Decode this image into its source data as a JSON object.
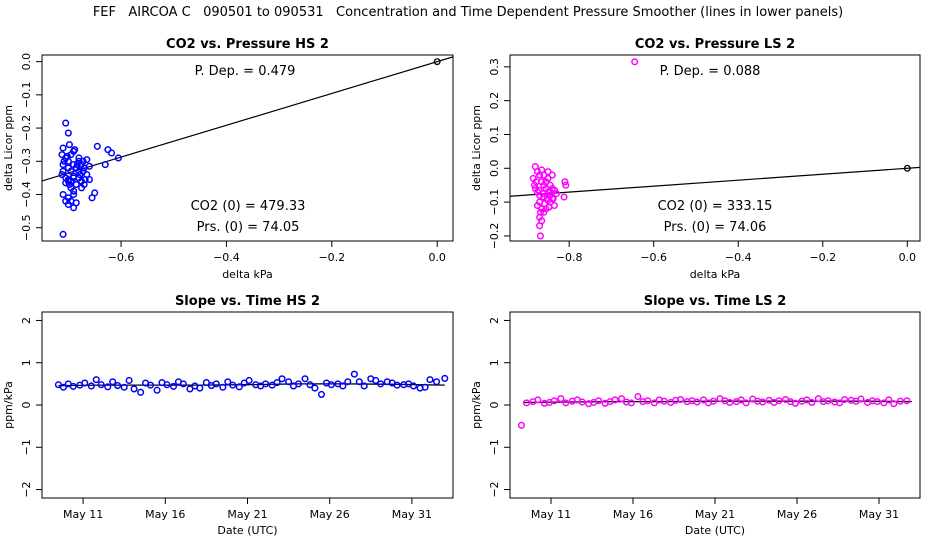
{
  "title": "FEF   AIRCOA C   090501 to 090531   Concentration and Time Dependent Pressure Smoother (lines in lower panels)",
  "colors": {
    "hs": "#0000ff",
    "ls": "#ff00ff",
    "line": "#000000",
    "axis": "#000000"
  },
  "chart_data": [
    {
      "id": "p1",
      "type": "scatter",
      "title": "CO2 vs. Pressure HS 2",
      "xlabel": "delta kPa",
      "ylabel": "delta Licor ppm",
      "xlim": [
        -0.75,
        0.03
      ],
      "ylim": [
        -0.54,
        0.02
      ],
      "xticks": [
        -0.6,
        -0.4,
        -0.2,
        0.0
      ],
      "xtick_labels": [
        "−0.6",
        "−0.4",
        "−0.2",
        "0.0"
      ],
      "yticks": [
        0.0,
        -0.1,
        -0.2,
        -0.3,
        -0.4,
        -0.5
      ],
      "ytick_labels": [
        "0.0",
        "−0.1",
        "−0.2",
        "−0.3",
        "−0.4",
        "−0.5"
      ],
      "annotations": {
        "pdep": "P. Dep. =  0.479",
        "co2_0": "CO2 (0) =  479.33",
        "prs_0": "Prs. (0) =  74.05"
      },
      "fit_line": {
        "slope": 0.479,
        "intercept": 0.0
      },
      "reference_point": [
        0.0,
        0.0
      ],
      "color": "hs",
      "points": [
        [
          -0.71,
          -0.52
        ],
        [
          -0.705,
          -0.185
        ],
        [
          -0.7,
          -0.215
        ],
        [
          -0.698,
          -0.25
        ],
        [
          -0.71,
          -0.26
        ],
        [
          -0.69,
          -0.27
        ],
        [
          -0.705,
          -0.29
        ],
        [
          -0.7,
          -0.3
        ],
        [
          -0.695,
          -0.28
        ],
        [
          -0.69,
          -0.31
        ],
        [
          -0.68,
          -0.29
        ],
        [
          -0.685,
          -0.32
        ],
        [
          -0.71,
          -0.33
        ],
        [
          -0.712,
          -0.34
        ],
        [
          -0.705,
          -0.35
        ],
        [
          -0.7,
          -0.36
        ],
        [
          -0.698,
          -0.37
        ],
        [
          -0.695,
          -0.38
        ],
        [
          -0.69,
          -0.39
        ],
        [
          -0.71,
          -0.4
        ],
        [
          -0.705,
          -0.42
        ],
        [
          -0.7,
          -0.43
        ],
        [
          -0.69,
          -0.44
        ],
        [
          -0.685,
          -0.425
        ],
        [
          -0.71,
          -0.31
        ],
        [
          -0.7,
          -0.32
        ],
        [
          -0.695,
          -0.33
        ],
        [
          -0.69,
          -0.345
        ],
        [
          -0.68,
          -0.35
        ],
        [
          -0.675,
          -0.36
        ],
        [
          -0.67,
          -0.37
        ],
        [
          -0.68,
          -0.3
        ],
        [
          -0.675,
          -0.31
        ],
        [
          -0.67,
          -0.32
        ],
        [
          -0.672,
          -0.33
        ],
        [
          -0.665,
          -0.295
        ],
        [
          -0.66,
          -0.315
        ],
        [
          -0.665,
          -0.34
        ],
        [
          -0.69,
          -0.35
        ],
        [
          -0.695,
          -0.36
        ],
        [
          -0.7,
          -0.355
        ],
        [
          -0.705,
          -0.365
        ],
        [
          -0.708,
          -0.3
        ],
        [
          -0.702,
          -0.285
        ],
        [
          -0.688,
          -0.265
        ],
        [
          -0.68,
          -0.33
        ],
        [
          -0.685,
          -0.37
        ],
        [
          -0.675,
          -0.38
        ],
        [
          -0.69,
          -0.4
        ],
        [
          -0.655,
          -0.41
        ],
        [
          -0.65,
          -0.395
        ],
        [
          -0.66,
          -0.355
        ],
        [
          -0.645,
          -0.255
        ],
        [
          -0.63,
          -0.31
        ],
        [
          -0.625,
          -0.265
        ],
        [
          -0.618,
          -0.275
        ],
        [
          -0.605,
          -0.29
        ],
        [
          -0.712,
          -0.28
        ],
        [
          -0.7,
          -0.41
        ],
        [
          -0.695,
          -0.42
        ],
        [
          -0.668,
          -0.355
        ],
        [
          -0.672,
          -0.3
        ],
        [
          -0.678,
          -0.34
        ],
        [
          -0.683,
          -0.31
        ]
      ]
    },
    {
      "id": "p2",
      "type": "scatter",
      "title": "CO2 vs. Pressure LS 2",
      "xlabel": "delta kPa",
      "ylabel": "delta Licor ppm",
      "xlim": [
        -0.94,
        0.03
      ],
      "ylim": [
        -0.215,
        0.335
      ],
      "xticks": [
        -0.8,
        -0.6,
        -0.4,
        -0.2,
        0.0
      ],
      "xtick_labels": [
        "−0.8",
        "−0.6",
        "−0.4",
        "−0.2",
        "0.0"
      ],
      "yticks": [
        0.3,
        0.2,
        0.1,
        0.0,
        -0.1,
        -0.2
      ],
      "ytick_labels": [
        "0.3",
        "0.2",
        "0.1",
        "0.0",
        "−0.1",
        "−0.2"
      ],
      "annotations": {
        "pdep": "P. Dep. =  0.088",
        "co2_0": "CO2 (0) =  333.15",
        "prs_0": "Prs. (0) =  74.06"
      },
      "fit_line": {
        "slope": 0.088,
        "intercept": 0.0
      },
      "reference_point": [
        0.0,
        0.0
      ],
      "color": "ls",
      "points": [
        [
          -0.645,
          0.315
        ],
        [
          -0.88,
          0.005
        ],
        [
          -0.875,
          -0.01
        ],
        [
          -0.87,
          -0.02
        ],
        [
          -0.885,
          -0.03
        ],
        [
          -0.865,
          -0.04
        ],
        [
          -0.86,
          -0.05
        ],
        [
          -0.855,
          -0.06
        ],
        [
          -0.85,
          -0.07
        ],
        [
          -0.845,
          -0.08
        ],
        [
          -0.84,
          -0.09
        ],
        [
          -0.87,
          -0.1
        ],
        [
          -0.875,
          -0.11
        ],
        [
          -0.865,
          -0.12
        ],
        [
          -0.86,
          -0.13
        ],
        [
          -0.87,
          -0.145
        ],
        [
          -0.865,
          -0.155
        ],
        [
          -0.87,
          -0.17
        ],
        [
          -0.868,
          -0.2
        ],
        [
          -0.88,
          -0.06
        ],
        [
          -0.875,
          -0.07
        ],
        [
          -0.87,
          -0.08
        ],
        [
          -0.86,
          -0.085
        ],
        [
          -0.85,
          -0.095
        ],
        [
          -0.845,
          -0.07
        ],
        [
          -0.835,
          -0.065
        ],
        [
          -0.83,
          -0.075
        ],
        [
          -0.855,
          -0.04
        ],
        [
          -0.85,
          -0.03
        ],
        [
          -0.845,
          -0.05
        ],
        [
          -0.84,
          -0.06
        ],
        [
          -0.86,
          -0.02
        ],
        [
          -0.865,
          -0.005
        ],
        [
          -0.85,
          -0.01
        ],
        [
          -0.84,
          -0.02
        ],
        [
          -0.81,
          -0.04
        ],
        [
          -0.808,
          -0.05
        ],
        [
          -0.812,
          -0.085
        ],
        [
          -0.835,
          -0.11
        ],
        [
          -0.855,
          -0.12
        ],
        [
          -0.845,
          -0.1
        ],
        [
          -0.878,
          -0.04
        ],
        [
          -0.882,
          -0.05
        ],
        [
          -0.872,
          -0.065
        ],
        [
          -0.862,
          -0.075
        ],
        [
          -0.852,
          -0.09
        ],
        [
          -0.858,
          -0.105
        ],
        [
          -0.848,
          -0.115
        ],
        [
          -0.838,
          -0.09
        ],
        [
          -0.868,
          -0.13
        ]
      ]
    },
    {
      "id": "p3",
      "type": "line+scatter",
      "title": "Slope vs. Time HS 2",
      "xlabel": "Date (UTC)",
      "ylabel": "ppm/kPa",
      "xlim": [
        8.5,
        33.5
      ],
      "ylim": [
        -2.2,
        2.2
      ],
      "xticks": [
        11,
        16,
        21,
        26,
        31
      ],
      "xtick_labels": [
        "May 11",
        "May 16",
        "May 21",
        "May 26",
        "May 31"
      ],
      "yticks": [
        2,
        1,
        0,
        -1,
        -2
      ],
      "ytick_labels": [
        "2",
        "1",
        "0",
        "−1",
        "−2"
      ],
      "color": "hs",
      "line_x": [
        9.5,
        12,
        15,
        18,
        21,
        24,
        27,
        30,
        33.0
      ],
      "line_y": [
        0.46,
        0.47,
        0.47,
        0.47,
        0.48,
        0.5,
        0.5,
        0.49,
        0.47
      ],
      "x": [
        9.5,
        9.8,
        10.1,
        10.4,
        10.8,
        11.1,
        11.5,
        11.8,
        12.1,
        12.5,
        12.8,
        13.1,
        13.5,
        13.8,
        14.1,
        14.5,
        14.8,
        15.1,
        15.5,
        15.8,
        16.1,
        16.5,
        16.8,
        17.1,
        17.5,
        17.8,
        18.1,
        18.5,
        18.8,
        19.1,
        19.5,
        19.8,
        20.1,
        20.5,
        20.8,
        21.1,
        21.5,
        21.8,
        22.1,
        22.5,
        22.8,
        23.1,
        23.5,
        23.8,
        24.1,
        24.5,
        24.8,
        25.1,
        25.5,
        25.8,
        26.1,
        26.5,
        26.8,
        27.1,
        27.5,
        27.8,
        28.1,
        28.5,
        28.8,
        29.1,
        29.5,
        29.8,
        30.1,
        30.5,
        30.8,
        31.1,
        31.5,
        31.8,
        32.1,
        32.5,
        33.0
      ],
      "y": [
        0.48,
        0.42,
        0.5,
        0.44,
        0.47,
        0.52,
        0.45,
        0.6,
        0.48,
        0.43,
        0.55,
        0.46,
        0.42,
        0.58,
        0.38,
        0.3,
        0.52,
        0.47,
        0.35,
        0.53,
        0.48,
        0.44,
        0.55,
        0.5,
        0.38,
        0.45,
        0.4,
        0.53,
        0.46,
        0.5,
        0.42,
        0.55,
        0.47,
        0.43,
        0.52,
        0.58,
        0.48,
        0.45,
        0.5,
        0.47,
        0.53,
        0.62,
        0.55,
        0.45,
        0.5,
        0.62,
        0.48,
        0.4,
        0.25,
        0.52,
        0.48,
        0.5,
        0.45,
        0.55,
        0.73,
        0.55,
        0.45,
        0.62,
        0.58,
        0.5,
        0.55,
        0.52,
        0.47,
        0.48,
        0.5,
        0.45,
        0.4,
        0.42,
        0.6,
        0.55,
        0.63
      ]
    },
    {
      "id": "p4",
      "type": "line+scatter",
      "title": "Slope vs. Time LS 2",
      "xlabel": "Date (UTC)",
      "ylabel": "ppm/kPa",
      "xlim": [
        8.5,
        33.5
      ],
      "ylim": [
        -2.2,
        2.2
      ],
      "xticks": [
        11,
        16,
        21,
        26,
        31
      ],
      "xtick_labels": [
        "May 11",
        "May 16",
        "May 21",
        "May 26",
        "May 31"
      ],
      "yticks": [
        2,
        1,
        0,
        -1,
        -2
      ],
      "ytick_labels": [
        "2",
        "1",
        "0",
        "−1",
        "−2"
      ],
      "color": "ls",
      "line_x": [
        9.3,
        12,
        15,
        18,
        21,
        24,
        27,
        30,
        33.0
      ],
      "line_y": [
        0.06,
        0.07,
        0.08,
        0.08,
        0.09,
        0.09,
        0.09,
        0.09,
        0.08
      ],
      "x": [
        9.2,
        9.5,
        9.9,
        10.2,
        10.6,
        10.9,
        11.2,
        11.6,
        11.9,
        12.3,
        12.6,
        12.9,
        13.3,
        13.6,
        13.9,
        14.3,
        14.6,
        14.9,
        15.3,
        15.6,
        15.9,
        16.3,
        16.6,
        16.9,
        17.3,
        17.6,
        17.9,
        18.3,
        18.6,
        18.9,
        19.3,
        19.6,
        19.9,
        20.3,
        20.6,
        20.9,
        21.3,
        21.6,
        21.9,
        22.3,
        22.6,
        22.9,
        23.3,
        23.6,
        23.9,
        24.3,
        24.6,
        24.9,
        25.3,
        25.6,
        25.9,
        26.3,
        26.6,
        26.9,
        27.3,
        27.6,
        27.9,
        28.3,
        28.6,
        28.9,
        29.3,
        29.6,
        29.9,
        30.3,
        30.6,
        30.9,
        31.3,
        31.6,
        31.9,
        32.3,
        32.7
      ],
      "y": [
        -0.48,
        0.05,
        0.08,
        0.12,
        0.04,
        0.06,
        0.1,
        0.15,
        0.05,
        0.09,
        0.12,
        0.07,
        0.03,
        0.06,
        0.1,
        0.04,
        0.08,
        0.12,
        0.15,
        0.07,
        0.05,
        0.2,
        0.08,
        0.1,
        0.05,
        0.12,
        0.09,
        0.06,
        0.11,
        0.13,
        0.08,
        0.1,
        0.07,
        0.12,
        0.05,
        0.09,
        0.15,
        0.1,
        0.06,
        0.08,
        0.12,
        0.05,
        0.14,
        0.09,
        0.07,
        0.11,
        0.06,
        0.1,
        0.13,
        0.08,
        0.04,
        0.09,
        0.12,
        0.06,
        0.15,
        0.08,
        0.1,
        0.07,
        0.05,
        0.13,
        0.11,
        0.09,
        0.14,
        0.06,
        0.1,
        0.08,
        0.05,
        0.12,
        0.03,
        0.09,
        0.1
      ]
    }
  ]
}
